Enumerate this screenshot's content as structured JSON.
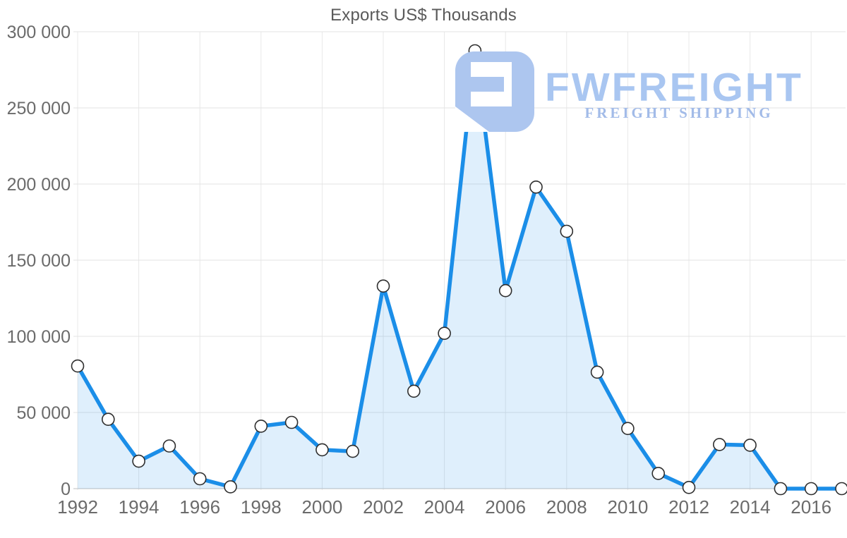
{
  "title": "Exports US$ Thousands",
  "watermark": {
    "brand": "FWFREIGHT",
    "tagline": "FREIGHT SHIPPING",
    "brand_color": "#a9c6f1",
    "tagline_color": "#a2bbe8",
    "mark_color": "#adc6ef"
  },
  "colors": {
    "line": "#1b8ee8",
    "area_fill": "rgba(27,142,232,0.14)",
    "marker_fill": "#ffffff",
    "marker_stroke": "#2f2f2f",
    "grid_horizontal": "#e3e3e3",
    "grid_vertical": "#e8e8e8",
    "axis_zero_line": "#cccccc",
    "axis_text": "#6b6b6b",
    "title_text": "#5a5a5a"
  },
  "chart_data": {
    "type": "area",
    "title": "Exports US$ Thousands",
    "xlabel": "",
    "ylabel": "",
    "x": [
      1992,
      1993,
      1994,
      1995,
      1996,
      1997,
      1998,
      1999,
      2000,
      2001,
      2002,
      2003,
      2004,
      2005,
      2006,
      2007,
      2008,
      2009,
      2010,
      2011,
      2012,
      2013,
      2014,
      2015,
      2016,
      2017
    ],
    "values": [
      80500,
      45500,
      18000,
      28000,
      6500,
      1200,
      41000,
      43500,
      25500,
      24500,
      133000,
      64000,
      102000,
      287500,
      130000,
      198000,
      169000,
      76500,
      39500,
      10000,
      800,
      29000,
      28500,
      0,
      0,
      0
    ],
    "ylim": [
      0,
      300000
    ],
    "xlim": [
      1992,
      2017
    ],
    "y_ticks": [
      0,
      50000,
      100000,
      150000,
      200000,
      250000,
      300000
    ],
    "y_tick_labels": [
      "0",
      "50 000",
      "100 000",
      "150 000",
      "200 000",
      "250 000",
      "300 000"
    ],
    "x_tick_years": [
      1992,
      1994,
      1996,
      1998,
      2000,
      2002,
      2004,
      2006,
      2008,
      2010,
      2012,
      2014,
      2016
    ],
    "grid": true,
    "legend": false,
    "marker": "circle"
  }
}
